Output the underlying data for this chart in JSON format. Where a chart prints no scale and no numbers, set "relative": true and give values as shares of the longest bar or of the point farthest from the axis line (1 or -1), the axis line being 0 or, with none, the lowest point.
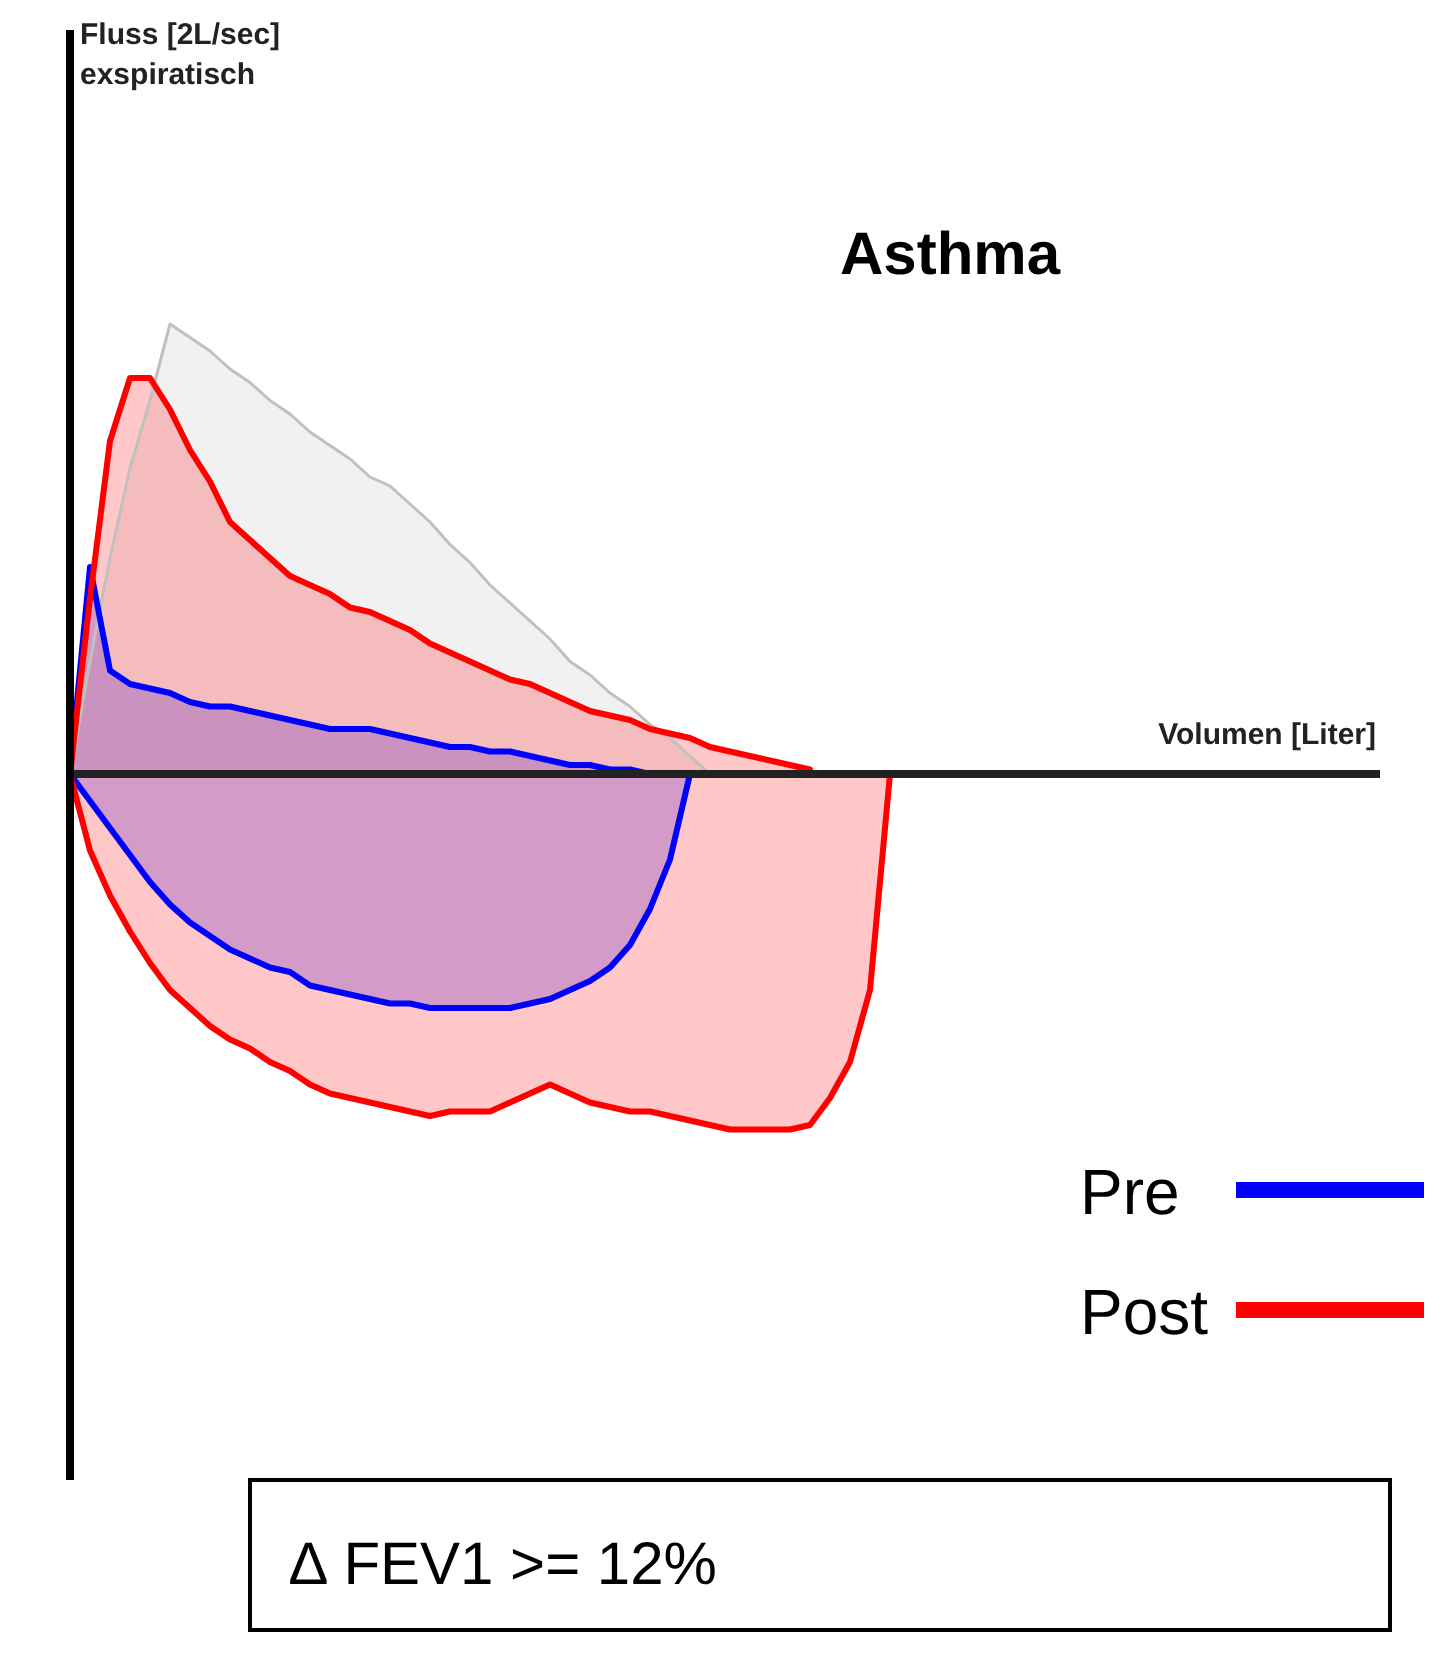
{
  "chart_data": {
    "type": "area",
    "relative": true,
    "title": "Asthma",
    "xlabel": "Volumen [Liter]",
    "annotations": [
      "Fluss [2L/sec]\nexspiratisch",
      "∆ FEV1 >= 12%"
    ],
    "legend": "bottom right",
    "categories": [
      null,
      null,
      null,
      null,
      null,
      null,
      null,
      null,
      null,
      null,
      null,
      null,
      null,
      null,
      null,
      null,
      null,
      null,
      null,
      null,
      null,
      null,
      null,
      null,
      null,
      null,
      null,
      null,
      null,
      null,
      null,
      null,
      null,
      null,
      null,
      null,
      null,
      null,
      null,
      null,
      null,
      null,
      null,
      null,
      null,
      null,
      null,
      null,
      null,
      null,
      null,
      null,
      null,
      null,
      null,
      null,
      null,
      null,
      null,
      null,
      null,
      null,
      null,
      null,
      null,
      null
    ],
    "series": [
      {
        "color": "#c0c0c0",
        "values": [
          0,
          0.25,
          0.48,
          0.68,
          0.83,
          1,
          0.97,
          0.94,
          0.9,
          0.87,
          0.83,
          0.8,
          0.76,
          0.73,
          0.7,
          0.66,
          0.64,
          0.6,
          0.56,
          0.51,
          0.47,
          0.42,
          0.38,
          0.34,
          0.3,
          0.25,
          0.22,
          0.18,
          0.15,
          0.11,
          0.08,
          0.04,
          0,
          null,
          null,
          null,
          null,
          null,
          null,
          null,
          null,
          null,
          null,
          null,
          null,
          null,
          null,
          null,
          null,
          null,
          null,
          null,
          null,
          null,
          null,
          null,
          null,
          null,
          null,
          null,
          null,
          null,
          null,
          null,
          null,
          null
        ]
      },
      {
        "name": "Pre",
        "color": "#0000ff",
        "values": [
          0,
          0.46,
          0.23,
          0.2,
          0.19,
          0.18,
          0.16,
          0.15,
          0.15,
          0.14,
          0.13,
          0.12,
          0.11,
          0.1,
          0.1,
          0.1,
          0.09,
          0.08,
          0.07,
          0.06,
          0.06,
          0.05,
          0.05,
          0.04,
          0.03,
          0.02,
          0.02,
          0.01,
          0.01,
          0,
          0,
          0,
          null,
          null,
          null,
          null,
          null,
          null,
          null,
          null,
          null,
          null,
          null,
          null,
          null,
          null,
          null,
          null,
          null,
          null,
          null,
          null,
          null,
          null,
          null,
          null,
          null,
          null,
          null,
          null,
          null,
          null,
          null,
          null,
          null,
          null
        ]
      },
      {
        "color": "#0000ff",
        "values": [
          0,
          -0.06,
          -0.12,
          -0.18,
          -0.24,
          -0.29,
          -0.33,
          -0.36,
          -0.39,
          -0.41,
          -0.43,
          -0.44,
          -0.47,
          -0.48,
          -0.49,
          -0.5,
          -0.51,
          -0.51,
          -0.52,
          -0.52,
          -0.52,
          -0.52,
          -0.52,
          -0.51,
          -0.5,
          -0.48,
          -0.46,
          -0.43,
          -0.38,
          -0.3,
          -0.19,
          0,
          null,
          null,
          null,
          null,
          null,
          null,
          null,
          null,
          null,
          null,
          null,
          null,
          null,
          null,
          null,
          null,
          null,
          null,
          null,
          null,
          null,
          null,
          null,
          null,
          null,
          null,
          null,
          null,
          null,
          null,
          null,
          null,
          null,
          null
        ]
      },
      {
        "name": "Post",
        "color": "#ff0000",
        "values": [
          0,
          0.39,
          0.74,
          0.88,
          0.88,
          0.81,
          0.72,
          0.65,
          0.56,
          0.52,
          0.48,
          0.44,
          0.42,
          0.4,
          0.37,
          0.36,
          0.34,
          0.32,
          0.29,
          0.27,
          0.25,
          0.23,
          0.21,
          0.2,
          0.18,
          0.16,
          0.14,
          0.13,
          0.12,
          0.1,
          0.09,
          0.08,
          0.06,
          0.05,
          0.04,
          0.03,
          0.02,
          0.01,
          null,
          null,
          null,
          null,
          null,
          null,
          null,
          null,
          null,
          null,
          null,
          null,
          null,
          null,
          null,
          null,
          null,
          null,
          null,
          null,
          null,
          null,
          null,
          null,
          null,
          null,
          null,
          null
        ]
      },
      {
        "color": "#ff0000",
        "values": [
          0,
          -0.17,
          -0.27,
          -0.35,
          -0.42,
          -0.48,
          -0.52,
          -0.56,
          -0.59,
          -0.61,
          -0.64,
          -0.66,
          -0.69,
          -0.71,
          -0.72,
          -0.73,
          -0.74,
          -0.75,
          -0.76,
          -0.75,
          -0.75,
          -0.75,
          -0.73,
          -0.71,
          -0.69,
          -0.71,
          -0.73,
          -0.74,
          -0.75,
          -0.75,
          -0.76,
          -0.77,
          -0.78,
          -0.79,
          -0.79,
          -0.79,
          -0.79,
          -0.78,
          -0.72,
          -0.64,
          -0.48,
          0,
          null,
          null,
          null,
          null,
          null,
          null,
          null,
          null,
          null,
          null,
          null,
          null,
          null,
          null,
          null,
          null,
          null,
          null,
          null,
          null,
          null,
          null,
          null,
          null
        ]
      }
    ]
  }
}
